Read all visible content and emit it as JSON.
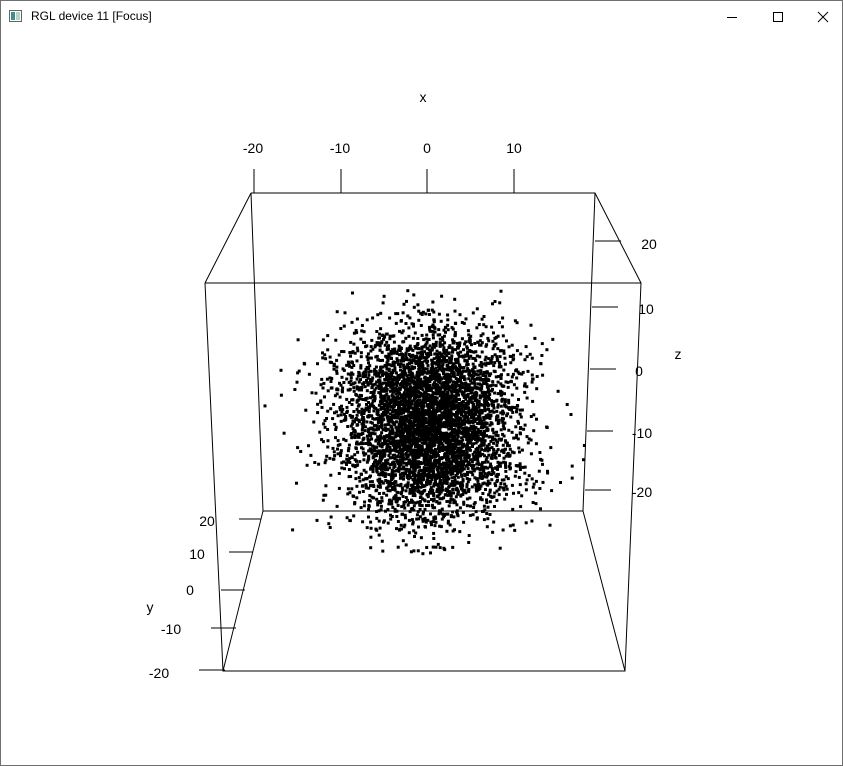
{
  "window": {
    "title": "RGL device 11 [Focus]",
    "icon": "rgl-window-icon",
    "controls": [
      "minimize-icon",
      "maximize-icon",
      "close-icon"
    ]
  },
  "chart_data": {
    "type": "scatter",
    "dimensions": 3,
    "point_color": "#000000",
    "background": "#ffffff",
    "box": true,
    "axes": {
      "x": {
        "label": "x",
        "ticks": [
          -20,
          -10,
          0,
          10
        ]
      },
      "y": {
        "label": "y",
        "ticks": [
          -20,
          -10,
          0,
          10,
          20
        ]
      },
      "z": {
        "label": "z",
        "ticks": [
          -20,
          -10,
          0,
          10,
          20
        ]
      }
    },
    "clusters": [
      {
        "center": {
          "x": 0,
          "y": 0,
          "z": 0
        },
        "sd": 5
      },
      {
        "center": {
          "x": 0,
          "y": 0,
          "z": -10
        },
        "sd": 5
      }
    ]
  }
}
